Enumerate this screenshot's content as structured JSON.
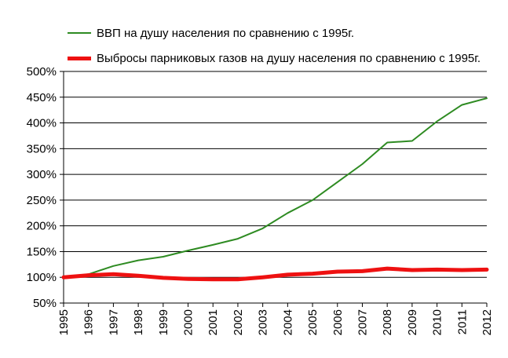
{
  "chart_data": {
    "type": "line",
    "title": "",
    "xlabel": "",
    "ylabel": "",
    "x": [
      1995,
      1996,
      1997,
      1998,
      1999,
      2000,
      2001,
      2002,
      2003,
      2004,
      2005,
      2006,
      2007,
      2008,
      2009,
      2010,
      2011,
      2012
    ],
    "x_tick_labels": [
      "1995",
      "1996",
      "1997",
      "1998",
      "1999",
      "2000",
      "2001",
      "2002",
      "2003",
      "2004",
      "2005",
      "2006",
      "2007",
      "2008",
      "2009",
      "2010",
      "2011",
      "2012"
    ],
    "ylim": [
      50,
      500
    ],
    "y_ticks": [
      50,
      100,
      150,
      200,
      250,
      300,
      350,
      400,
      450,
      500
    ],
    "y_tick_labels": [
      "50%",
      "100%",
      "150%",
      "200%",
      "250%",
      "300%",
      "350%",
      "400%",
      "450%",
      "500%"
    ],
    "grid": true,
    "legend_position": "top",
    "series": [
      {
        "name": "ВВП на душу населения по сравнению с 1995г.",
        "color": "#2e8b22",
        "line_width": "thin",
        "values": [
          100,
          106,
          122,
          133,
          140,
          152,
          163,
          175,
          195,
          225,
          250,
          285,
          320,
          362,
          365,
          403,
          435,
          448
        ]
      },
      {
        "name": "Выбросы парниковых газов на душу населения по сравнению с 1995г.",
        "color": "#ee1111",
        "line_width": "thick",
        "values": [
          100,
          104,
          106,
          103,
          99,
          97,
          96,
          96,
          100,
          105,
          107,
          111,
          112,
          117,
          114,
          115,
          114,
          115
        ]
      }
    ]
  }
}
